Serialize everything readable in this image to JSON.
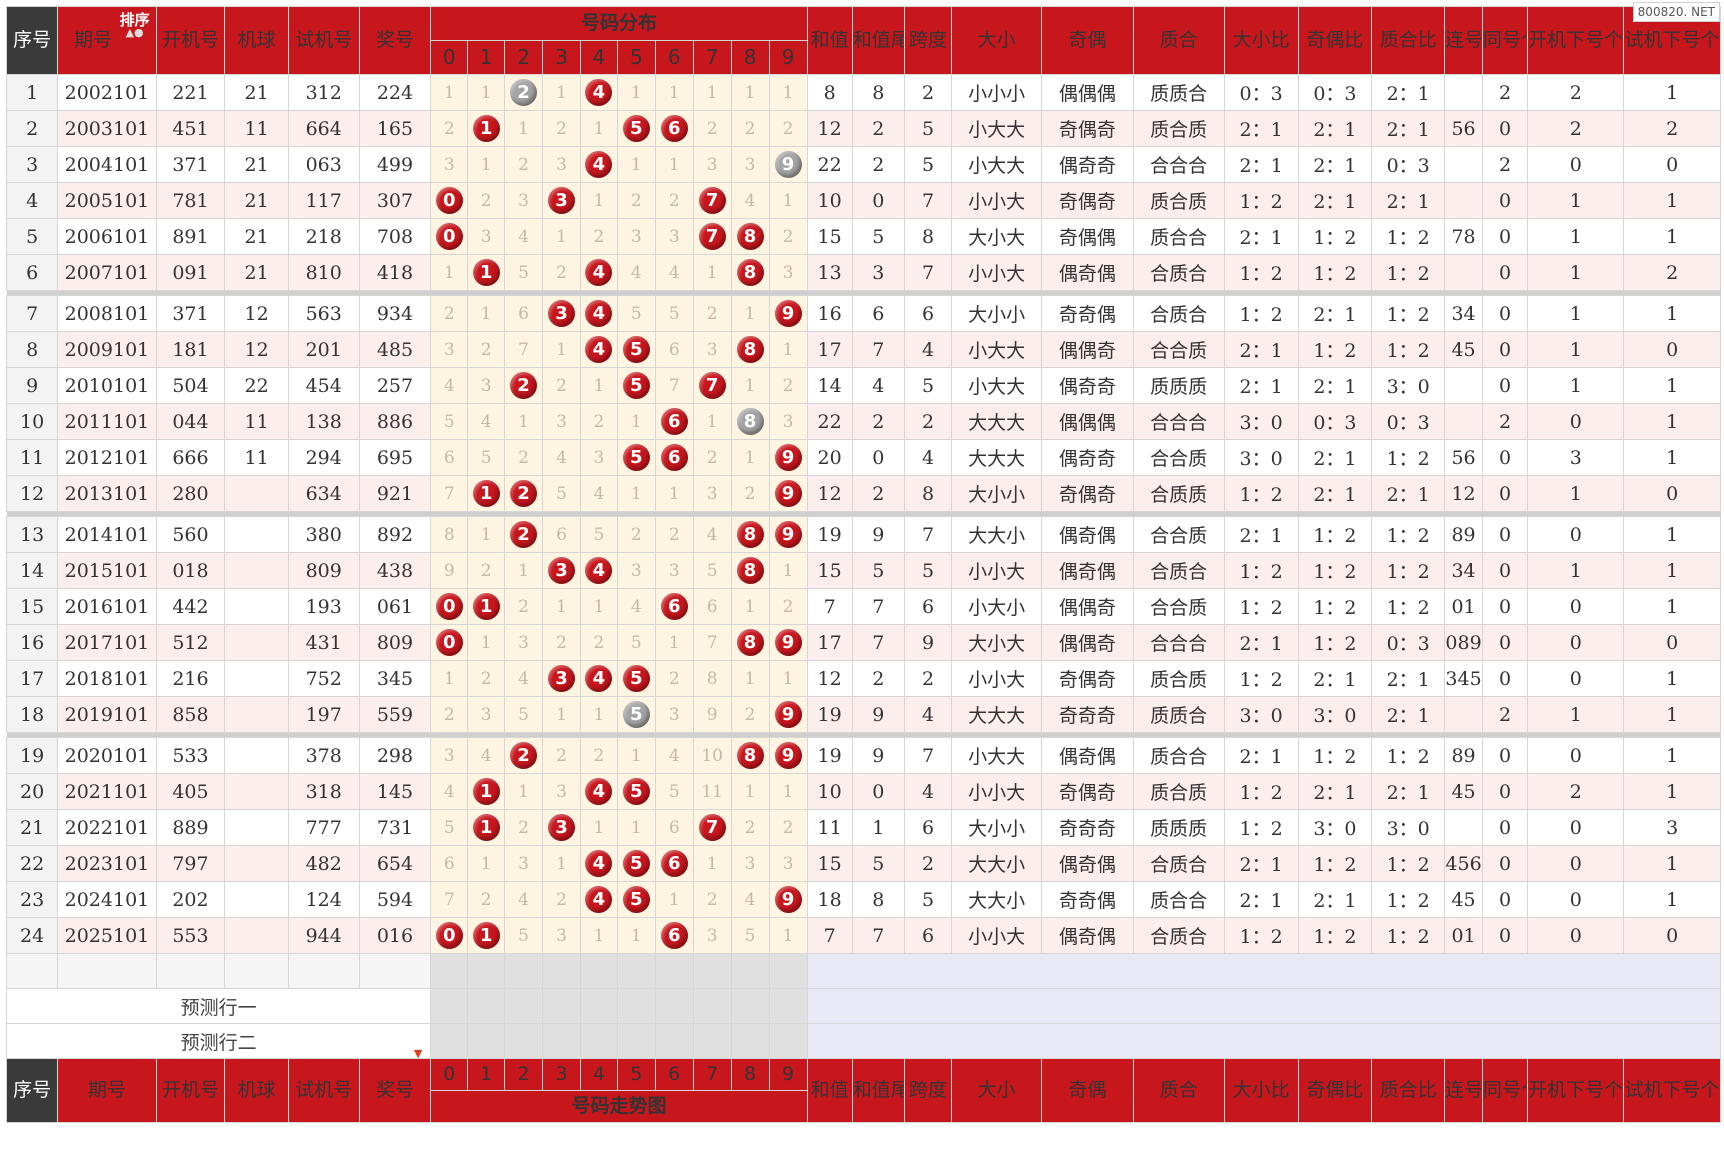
{
  "watermark": "800820. NET",
  "headers": {
    "seq": "序号",
    "period": "期号",
    "sort": "排序",
    "draw": "开机号",
    "machine": "机球",
    "trial": "试机号",
    "prize": "奖号",
    "distribution": "号码分布",
    "trend": "号码走势图",
    "sum": "和值",
    "sum_tail": "和值尾",
    "span": "跨度",
    "size": "大小",
    "oddeven": "奇偶",
    "prime": "质合",
    "size_ratio": "大小比",
    "oe_ratio": "奇偶比",
    "prime_ratio": "质合比",
    "consec": "连号",
    "same_count": "同号个数",
    "draw_next": "开机下号个数",
    "trial_next": "试机下号个数"
  },
  "digits": [
    "0",
    "1",
    "2",
    "3",
    "4",
    "5",
    "6",
    "7",
    "8",
    "9"
  ],
  "predict": {
    "row1": "预测行一",
    "row2": "预测行二"
  },
  "rows": [
    {
      "seq": "1",
      "period": "2002101",
      "draw": "221",
      "machine": "21",
      "trial": "312",
      "prize": "224",
      "dist": [
        "1",
        "1",
        "G2",
        "1",
        "R4",
        "1",
        "1",
        "1",
        "1",
        "1"
      ],
      "sum": "8",
      "tail": "8",
      "span": "2",
      "size": "小小小",
      "oe": "偶偶偶",
      "prime": "质质合",
      "sr": "0：3",
      "oer": "0：3",
      "pr": "2：1",
      "con": "",
      "same": "2",
      "dn": "2",
      "tn": "1"
    },
    {
      "seq": "2",
      "period": "2003101",
      "draw": "451",
      "machine": "11",
      "trial": "664",
      "prize": "165",
      "dist": [
        "2",
        "R1",
        "1",
        "2",
        "1",
        "R5",
        "R6",
        "2",
        "2",
        "2"
      ],
      "sum": "12",
      "tail": "2",
      "span": "5",
      "size": "小大大",
      "oe": "奇偶奇",
      "prime": "质合质",
      "sr": "2：1",
      "oer": "2：1",
      "pr": "2：1",
      "con": "56",
      "same": "0",
      "dn": "2",
      "tn": "2"
    },
    {
      "seq": "3",
      "period": "2004101",
      "draw": "371",
      "machine": "21",
      "trial": "063",
      "prize": "499",
      "dist": [
        "3",
        "1",
        "2",
        "3",
        "R4",
        "1",
        "1",
        "3",
        "3",
        "G9"
      ],
      "sum": "22",
      "tail": "2",
      "span": "5",
      "size": "小大大",
      "oe": "偶奇奇",
      "prime": "合合合",
      "sr": "2：1",
      "oer": "2：1",
      "pr": "0：3",
      "con": "",
      "same": "2",
      "dn": "0",
      "tn": "0"
    },
    {
      "seq": "4",
      "period": "2005101",
      "draw": "781",
      "machine": "21",
      "trial": "117",
      "prize": "307",
      "dist": [
        "R0",
        "2",
        "3",
        "R3",
        "1",
        "2",
        "2",
        "R7",
        "4",
        "1"
      ],
      "sum": "10",
      "tail": "0",
      "span": "7",
      "size": "小小大",
      "oe": "奇偶奇",
      "prime": "质合质",
      "sr": "1：2",
      "oer": "2：1",
      "pr": "2：1",
      "con": "",
      "same": "0",
      "dn": "1",
      "tn": "1"
    },
    {
      "seq": "5",
      "period": "2006101",
      "draw": "891",
      "machine": "21",
      "trial": "218",
      "prize": "708",
      "dist": [
        "R0",
        "3",
        "4",
        "1",
        "2",
        "3",
        "3",
        "R7",
        "R8",
        "2"
      ],
      "sum": "15",
      "tail": "5",
      "span": "8",
      "size": "大小大",
      "oe": "奇偶偶",
      "prime": "质合合",
      "sr": "2：1",
      "oer": "1：2",
      "pr": "1：2",
      "con": "78",
      "same": "0",
      "dn": "1",
      "tn": "1"
    },
    {
      "seq": "6",
      "period": "2007101",
      "draw": "091",
      "machine": "21",
      "trial": "810",
      "prize": "418",
      "dist": [
        "1",
        "R1",
        "5",
        "2",
        "R4",
        "4",
        "4",
        "1",
        "R8",
        "3"
      ],
      "sum": "13",
      "tail": "3",
      "span": "7",
      "size": "小小大",
      "oe": "偶奇偶",
      "prime": "合质合",
      "sr": "1：2",
      "oer": "1：2",
      "pr": "1：2",
      "con": "",
      "same": "0",
      "dn": "1",
      "tn": "2"
    },
    {
      "seq": "7",
      "period": "2008101",
      "draw": "371",
      "machine": "12",
      "trial": "563",
      "prize": "934",
      "dist": [
        "2",
        "1",
        "6",
        "R3",
        "R4",
        "5",
        "5",
        "2",
        "1",
        "R9"
      ],
      "sum": "16",
      "tail": "6",
      "span": "6",
      "size": "大小小",
      "oe": "奇奇偶",
      "prime": "合质合",
      "sr": "1：2",
      "oer": "2：1",
      "pr": "1：2",
      "con": "34",
      "same": "0",
      "dn": "1",
      "tn": "1"
    },
    {
      "seq": "8",
      "period": "2009101",
      "draw": "181",
      "machine": "12",
      "trial": "201",
      "prize": "485",
      "dist": [
        "3",
        "2",
        "7",
        "1",
        "R4",
        "R5",
        "6",
        "3",
        "R8",
        "1"
      ],
      "sum": "17",
      "tail": "7",
      "span": "4",
      "size": "小大大",
      "oe": "偶偶奇",
      "prime": "合合质",
      "sr": "2：1",
      "oer": "1：2",
      "pr": "1：2",
      "con": "45",
      "same": "0",
      "dn": "1",
      "tn": "0"
    },
    {
      "seq": "9",
      "period": "2010101",
      "draw": "504",
      "machine": "22",
      "trial": "454",
      "prize": "257",
      "dist": [
        "4",
        "3",
        "R2",
        "2",
        "1",
        "R5",
        "7",
        "R7",
        "1",
        "2"
      ],
      "sum": "14",
      "tail": "4",
      "span": "5",
      "size": "小大大",
      "oe": "偶奇奇",
      "prime": "质质质",
      "sr": "2：1",
      "oer": "2：1",
      "pr": "3：0",
      "con": "",
      "same": "0",
      "dn": "1",
      "tn": "1"
    },
    {
      "seq": "10",
      "period": "2011101",
      "draw": "044",
      "machine": "11",
      "trial": "138",
      "prize": "886",
      "dist": [
        "5",
        "4",
        "1",
        "3",
        "2",
        "1",
        "R6",
        "1",
        "G8",
        "3"
      ],
      "sum": "22",
      "tail": "2",
      "span": "2",
      "size": "大大大",
      "oe": "偶偶偶",
      "prime": "合合合",
      "sr": "3：0",
      "oer": "0：3",
      "pr": "0：3",
      "con": "",
      "same": "2",
      "dn": "0",
      "tn": "1"
    },
    {
      "seq": "11",
      "period": "2012101",
      "draw": "666",
      "machine": "11",
      "trial": "294",
      "prize": "695",
      "dist": [
        "6",
        "5",
        "2",
        "4",
        "3",
        "R5",
        "R6",
        "2",
        "1",
        "R9"
      ],
      "sum": "20",
      "tail": "0",
      "span": "4",
      "size": "大大大",
      "oe": "偶奇奇",
      "prime": "合合质",
      "sr": "3：0",
      "oer": "2：1",
      "pr": "1：2",
      "con": "56",
      "same": "0",
      "dn": "3",
      "tn": "1"
    },
    {
      "seq": "12",
      "period": "2013101",
      "draw": "280",
      "machine": "",
      "trial": "634",
      "prize": "921",
      "dist": [
        "7",
        "R1",
        "R2",
        "5",
        "4",
        "1",
        "1",
        "3",
        "2",
        "R9"
      ],
      "sum": "12",
      "tail": "2",
      "span": "8",
      "size": "大小小",
      "oe": "奇偶奇",
      "prime": "合质质",
      "sr": "1：2",
      "oer": "2：1",
      "pr": "2：1",
      "con": "12",
      "same": "0",
      "dn": "1",
      "tn": "0"
    },
    {
      "seq": "13",
      "period": "2014101",
      "draw": "560",
      "machine": "",
      "trial": "380",
      "prize": "892",
      "dist": [
        "8",
        "1",
        "R2",
        "6",
        "5",
        "2",
        "2",
        "4",
        "R8",
        "R9"
      ],
      "sum": "19",
      "tail": "9",
      "span": "7",
      "size": "大大小",
      "oe": "偶奇偶",
      "prime": "合合质",
      "sr": "2：1",
      "oer": "1：2",
      "pr": "1：2",
      "con": "89",
      "same": "0",
      "dn": "0",
      "tn": "1"
    },
    {
      "seq": "14",
      "period": "2015101",
      "draw": "018",
      "machine": "",
      "trial": "809",
      "prize": "438",
      "dist": [
        "9",
        "2",
        "1",
        "R3",
        "R4",
        "3",
        "3",
        "5",
        "R8",
        "1"
      ],
      "sum": "15",
      "tail": "5",
      "span": "5",
      "size": "小小大",
      "oe": "偶奇偶",
      "prime": "合质合",
      "sr": "1：2",
      "oer": "1：2",
      "pr": "1：2",
      "con": "34",
      "same": "0",
      "dn": "1",
      "tn": "1"
    },
    {
      "seq": "15",
      "period": "2016101",
      "draw": "442",
      "machine": "",
      "trial": "193",
      "prize": "061",
      "dist": [
        "R0",
        "R1",
        "2",
        "1",
        "1",
        "4",
        "R6",
        "6",
        "1",
        "2"
      ],
      "sum": "7",
      "tail": "7",
      "span": "6",
      "size": "小大小",
      "oe": "偶偶奇",
      "prime": "合合质",
      "sr": "1：2",
      "oer": "1：2",
      "pr": "1：2",
      "con": "01",
      "same": "0",
      "dn": "0",
      "tn": "1"
    },
    {
      "seq": "16",
      "period": "2017101",
      "draw": "512",
      "machine": "",
      "trial": "431",
      "prize": "809",
      "dist": [
        "R0",
        "1",
        "3",
        "2",
        "2",
        "5",
        "1",
        "7",
        "R8",
        "R9"
      ],
      "sum": "17",
      "tail": "7",
      "span": "9",
      "size": "大小大",
      "oe": "偶偶奇",
      "prime": "合合合",
      "sr": "2：1",
      "oer": "1：2",
      "pr": "0：3",
      "con": "089",
      "same": "0",
      "dn": "0",
      "tn": "0"
    },
    {
      "seq": "17",
      "period": "2018101",
      "draw": "216",
      "machine": "",
      "trial": "752",
      "prize": "345",
      "dist": [
        "1",
        "2",
        "4",
        "R3",
        "R4",
        "R5",
        "2",
        "8",
        "1",
        "1"
      ],
      "sum": "12",
      "tail": "2",
      "span": "2",
      "size": "小小大",
      "oe": "奇偶奇",
      "prime": "质合质",
      "sr": "1：2",
      "oer": "2：1",
      "pr": "2：1",
      "con": "345",
      "same": "0",
      "dn": "0",
      "tn": "1"
    },
    {
      "seq": "18",
      "period": "2019101",
      "draw": "858",
      "machine": "",
      "trial": "197",
      "prize": "559",
      "dist": [
        "2",
        "3",
        "5",
        "1",
        "1",
        "G5",
        "3",
        "9",
        "2",
        "R9"
      ],
      "sum": "19",
      "tail": "9",
      "span": "4",
      "size": "大大大",
      "oe": "奇奇奇",
      "prime": "质质合",
      "sr": "3：0",
      "oer": "3：0",
      "pr": "2：1",
      "con": "",
      "same": "2",
      "dn": "1",
      "tn": "1"
    },
    {
      "seq": "19",
      "period": "2020101",
      "draw": "533",
      "machine": "",
      "trial": "378",
      "prize": "298",
      "dist": [
        "3",
        "4",
        "R2",
        "2",
        "2",
        "1",
        "4",
        "10",
        "R8",
        "R9"
      ],
      "sum": "19",
      "tail": "9",
      "span": "7",
      "size": "小大大",
      "oe": "偶奇偶",
      "prime": "质合合",
      "sr": "2：1",
      "oer": "1：2",
      "pr": "1：2",
      "con": "89",
      "same": "0",
      "dn": "0",
      "tn": "1"
    },
    {
      "seq": "20",
      "period": "2021101",
      "draw": "405",
      "machine": "",
      "trial": "318",
      "prize": "145",
      "dist": [
        "4",
        "R1",
        "1",
        "3",
        "R4",
        "R5",
        "5",
        "11",
        "1",
        "1"
      ],
      "sum": "10",
      "tail": "0",
      "span": "4",
      "size": "小小大",
      "oe": "奇偶奇",
      "prime": "质合质",
      "sr": "1：2",
      "oer": "2：1",
      "pr": "2：1",
      "con": "45",
      "same": "0",
      "dn": "2",
      "tn": "1"
    },
    {
      "seq": "21",
      "period": "2022101",
      "draw": "889",
      "machine": "",
      "trial": "777",
      "prize": "731",
      "dist": [
        "5",
        "R1",
        "2",
        "R3",
        "1",
        "1",
        "6",
        "R7",
        "2",
        "2"
      ],
      "sum": "11",
      "tail": "1",
      "span": "6",
      "size": "大小小",
      "oe": "奇奇奇",
      "prime": "质质质",
      "sr": "1：2",
      "oer": "3：0",
      "pr": "3：0",
      "con": "",
      "same": "0",
      "dn": "0",
      "tn": "3"
    },
    {
      "seq": "22",
      "period": "2023101",
      "draw": "797",
      "machine": "",
      "trial": "482",
      "prize": "654",
      "dist": [
        "6",
        "1",
        "3",
        "1",
        "R4",
        "R5",
        "R6",
        "1",
        "3",
        "3"
      ],
      "sum": "15",
      "tail": "5",
      "span": "2",
      "size": "大大小",
      "oe": "偶奇偶",
      "prime": "合质合",
      "sr": "2：1",
      "oer": "1：2",
      "pr": "1：2",
      "con": "456",
      "same": "0",
      "dn": "0",
      "tn": "1"
    },
    {
      "seq": "23",
      "period": "2024101",
      "draw": "202",
      "machine": "",
      "trial": "124",
      "prize": "594",
      "dist": [
        "7",
        "2",
        "4",
        "2",
        "R4",
        "R5",
        "1",
        "2",
        "4",
        "R9"
      ],
      "sum": "18",
      "tail": "8",
      "span": "5",
      "size": "大大小",
      "oe": "奇奇偶",
      "prime": "质合合",
      "sr": "2：1",
      "oer": "2：1",
      "pr": "1：2",
      "con": "45",
      "same": "0",
      "dn": "0",
      "tn": "1"
    },
    {
      "seq": "24",
      "period": "2025101",
      "draw": "553",
      "machine": "",
      "trial": "944",
      "prize": "016",
      "dist": [
        "R0",
        "R1",
        "5",
        "3",
        "1",
        "1",
        "R6",
        "3",
        "5",
        "1"
      ],
      "sum": "7",
      "tail": "7",
      "span": "6",
      "size": "小小大",
      "oe": "偶奇偶",
      "prime": "合质合",
      "sr": "1：2",
      "oer": "1：2",
      "pr": "1：2",
      "con": "01",
      "same": "0",
      "dn": "0",
      "tn": "0"
    }
  ]
}
